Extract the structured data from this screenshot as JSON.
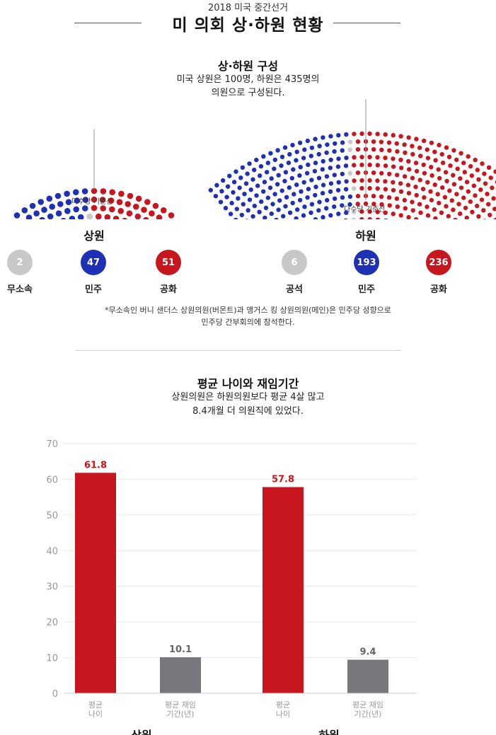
{
  "header": {
    "kicker": "2018 미국 중간선거",
    "title": "미 의회 상·하원 현황"
  },
  "composition": {
    "title": "상·하원 구성",
    "desc_line1": "미국 상원은 100명, 하원은 435명의",
    "desc_line2": "의원으로 구성된다.",
    "majority_label": "다수당 기준선"
  },
  "colors": {
    "democrat": "#1e30b4",
    "republican": "#c8161e",
    "other": "#c8c8c8",
    "tenure_bar": "#77787b",
    "age_bar": "#c8161e"
  },
  "senate": {
    "title": "상원",
    "groups": [
      {
        "count": "2",
        "label": "무소속",
        "color": "#c8c8c8"
      },
      {
        "count": "47",
        "label": "민주",
        "color": "#1e30b4"
      },
      {
        "count": "51",
        "label": "공화",
        "color": "#c8161e"
      }
    ]
  },
  "house": {
    "title": "하원",
    "groups": [
      {
        "count": "6",
        "label": "공석",
        "color": "#c8c8c8"
      },
      {
        "count": "193",
        "label": "민주",
        "color": "#1e30b4"
      },
      {
        "count": "236",
        "label": "공화",
        "color": "#c8161e"
      }
    ]
  },
  "note": {
    "line1": "*무소속인 버니 샌더스 상원의원(버몬트)과 앵거스 킹 상원의원(메인)은 민주당 성향으로",
    "line2": "민주당 간부회의에 참석한다."
  },
  "age_section": {
    "title": "평균 나이와 재임기간",
    "desc_line1": "상원의원은 하원의원보다 평균 4살 많고",
    "desc_line2": "8.4개월 더 의원직에 있었다."
  },
  "chart_data": {
    "type": "bar",
    "ylim": [
      0,
      70
    ],
    "yticks": [
      0,
      10,
      20,
      30,
      40,
      50,
      60,
      70
    ],
    "groups": [
      {
        "name": "상원",
        "bars": [
          {
            "label_line1": "평균",
            "label_line2": "나이",
            "value": 61.8,
            "color": "#c8161e"
          },
          {
            "label_line1": "평균 재임",
            "label_line2": "기간(년)",
            "value": 10.1,
            "color": "#77787b"
          }
        ]
      },
      {
        "name": "하원",
        "bars": [
          {
            "label_line1": "평균",
            "label_line2": "나이",
            "value": 57.8,
            "color": "#c8161e"
          },
          {
            "label_line1": "평균 재임",
            "label_line2": "기간(년)",
            "value": 9.4,
            "color": "#77787b"
          }
        ]
      }
    ]
  }
}
